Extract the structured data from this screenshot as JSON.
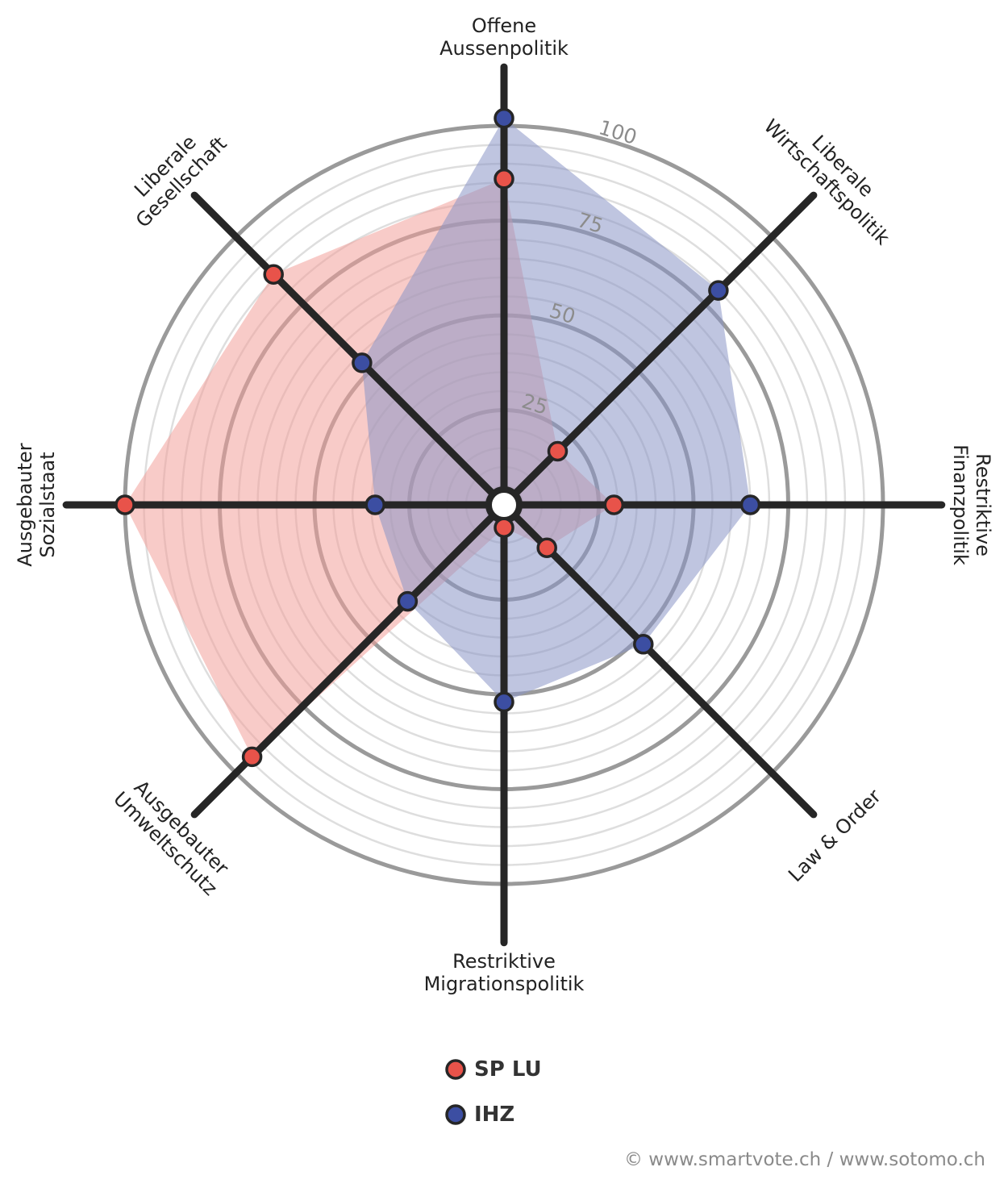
{
  "chart_data": {
    "type": "radar",
    "axes": [
      {
        "label_lines": [
          "Offene",
          "Aussenpolitik"
        ]
      },
      {
        "label_lines": [
          "Liberale",
          "Wirtschaftspolitik"
        ]
      },
      {
        "label_lines": [
          "Restriktive",
          "Finanzpolitik"
        ]
      },
      {
        "label_lines": [
          "Law & Order"
        ]
      },
      {
        "label_lines": [
          "Restriktive",
          "Migrationspolitik"
        ]
      },
      {
        "label_lines": [
          "Ausgebauter",
          "Umweltschutz"
        ]
      },
      {
        "label_lines": [
          "Ausgebauter",
          "Sozialstaat"
        ]
      },
      {
        "label_lines": [
          "Liberale",
          "Gesellschaft"
        ]
      }
    ],
    "range": [
      0,
      100
    ],
    "ticks": [
      "25",
      "50",
      "75",
      "100"
    ],
    "tick_values": [
      25,
      50,
      75,
      100
    ],
    "series": [
      {
        "name": "SP LU",
        "color": "#e8534a",
        "fill": "#f2a19b",
        "values": [
          86,
          20,
          29,
          16,
          6,
          94,
          100,
          86
        ]
      },
      {
        "name": "IHZ",
        "color": "#3c4ea2",
        "fill": "#8a95c7",
        "values": [
          102,
          80,
          65,
          52,
          52,
          36,
          34,
          53
        ]
      }
    ]
  },
  "legend": {
    "items": [
      {
        "name": "SP LU",
        "color": "#e8534a"
      },
      {
        "name": "IHZ",
        "color": "#3c4ea2"
      }
    ]
  },
  "copyright": "© www.smartvote.ch / www.sotomo.ch"
}
